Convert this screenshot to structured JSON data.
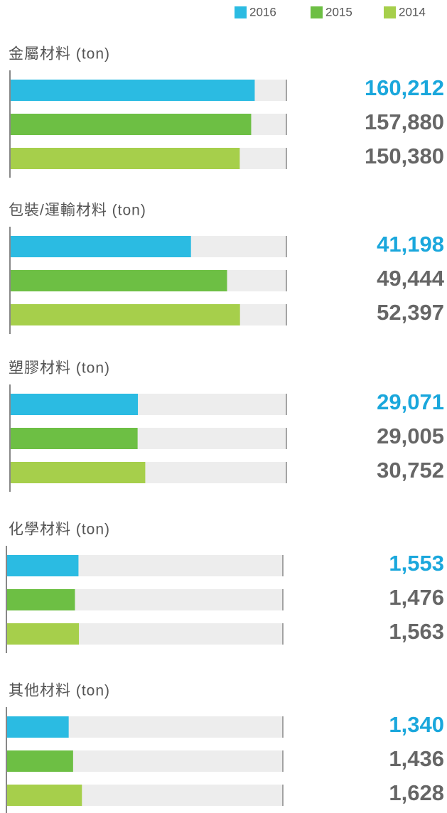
{
  "chart_data": {
    "type": "bar",
    "orientation": "horizontal",
    "series": [
      {
        "name": "2016",
        "color": "#2bbbe2"
      },
      {
        "name": "2015",
        "color": "#6dbf44"
      },
      {
        "name": "2014",
        "color": "#a6cf4b"
      }
    ],
    "panels": [
      {
        "title": "金屬材料 (ton)",
        "values": [
          160212,
          157880,
          150380
        ],
        "value_labels": [
          "160,212",
          "157,880",
          "150,380"
        ],
        "xlim": [
          0,
          181000
        ]
      },
      {
        "title": "包裝/運輸材料 (ton)",
        "values": [
          41198,
          49444,
          52397
        ],
        "value_labels": [
          "41,198",
          "49,444",
          "52,397"
        ],
        "xlim": [
          0,
          63000
        ]
      },
      {
        "title": "塑膠材料 (ton)",
        "values": [
          29071,
          29005,
          30752
        ],
        "value_labels": [
          "29,071",
          "29,005",
          "30,752"
        ],
        "xlim": [
          0,
          63000
        ]
      },
      {
        "title": "化學材料 (ton)",
        "values": [
          1553,
          1476,
          1563
        ],
        "value_labels": [
          "1,553",
          "1,476",
          "1,563"
        ],
        "xlim": [
          0,
          6000
        ]
      },
      {
        "title": "其他材料 (ton)",
        "values": [
          1340,
          1436,
          1628
        ],
        "value_labels": [
          "1,340",
          "1,436",
          "1,628"
        ],
        "xlim": [
          0,
          6000
        ]
      }
    ]
  }
}
